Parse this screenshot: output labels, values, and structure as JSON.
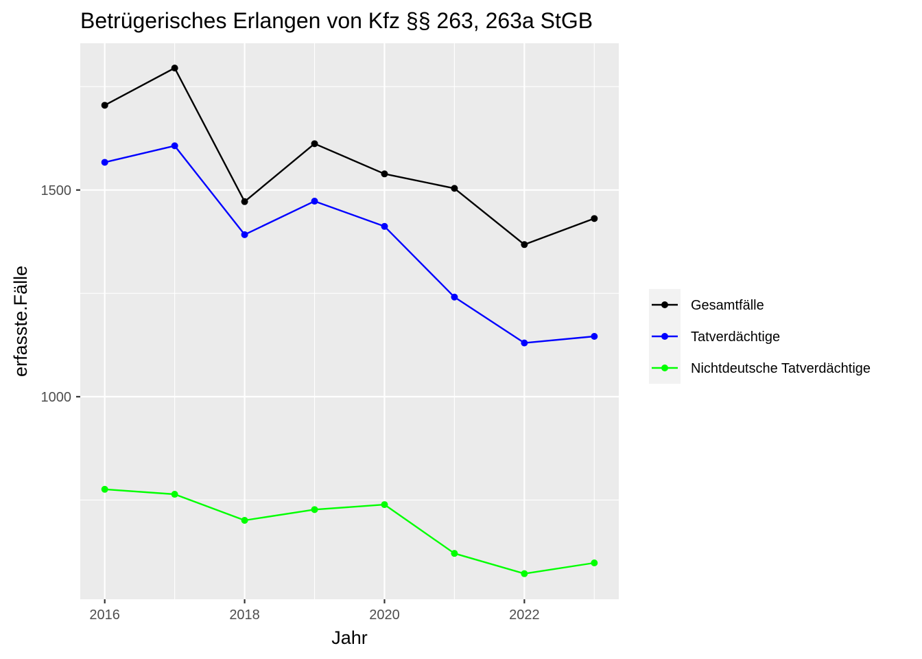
{
  "chart_data": {
    "type": "line",
    "title": "Betrügerisches Erlangen von Kfz §§ 263, 263a StGB",
    "xlabel": "Jahr",
    "ylabel": "erfasste.Fälle",
    "x": [
      2016,
      2017,
      2018,
      2019,
      2020,
      2021,
      2022,
      2023
    ],
    "xlim": [
      2015.65,
      2023.35
    ],
    "ylim": [
      510,
      1855
    ],
    "x_ticks": [
      2016,
      2018,
      2020,
      2022
    ],
    "y_ticks": [
      1000,
      1500
    ],
    "y_minor_ticks": [
      750,
      1250,
      1750
    ],
    "grid": true,
    "legend_position": "right",
    "series": [
      {
        "name": "Gesamtfälle",
        "color": "#000000",
        "values": [
          1705,
          1795,
          1472,
          1612,
          1539,
          1504,
          1368,
          1431
        ]
      },
      {
        "name": "Tatverdächtige",
        "color": "#0000ff",
        "values": [
          1567,
          1607,
          1392,
          1473,
          1412,
          1241,
          1130,
          1146
        ]
      },
      {
        "name": "Nichtdeutsche Tatverdächtige",
        "color": "#00ff00",
        "values": [
          776,
          764,
          701,
          727,
          739,
          621,
          572,
          598
        ]
      }
    ]
  }
}
